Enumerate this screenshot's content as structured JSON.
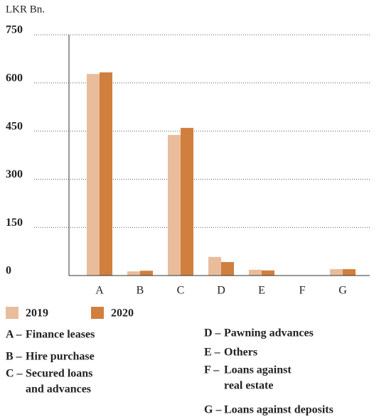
{
  "chart_data": {
    "type": "bar",
    "y_axis_label": "LKR Bn.",
    "categories": [
      "A",
      "B",
      "C",
      "D",
      "E",
      "F",
      "G"
    ],
    "series": [
      {
        "name": "2019",
        "color": "#e9bd9b",
        "values": [
          628,
          13,
          438,
          58,
          18,
          1,
          20
        ]
      },
      {
        "name": "2020",
        "color": "#d17f3e",
        "values": [
          633,
          15,
          460,
          42,
          16,
          1,
          20
        ]
      }
    ],
    "ylim": [
      0,
      750
    ],
    "yticks": [
      0,
      150,
      300,
      450,
      600,
      750
    ],
    "grid": true,
    "key": [
      {
        "code": "A –",
        "label": [
          "Finance leases"
        ]
      },
      {
        "code": "B –",
        "label": [
          "Hire purchase"
        ]
      },
      {
        "code": "C –",
        "label": [
          "Secured loans",
          "and advances"
        ]
      },
      {
        "code": "D –",
        "label": [
          "Pawning advances"
        ]
      },
      {
        "code": "E –",
        "label": [
          "Others"
        ]
      },
      {
        "code": "F –",
        "label": [
          "Loans against",
          "real estate"
        ]
      },
      {
        "code": "G –",
        "label": [
          "Loans against deposits"
        ]
      }
    ]
  }
}
